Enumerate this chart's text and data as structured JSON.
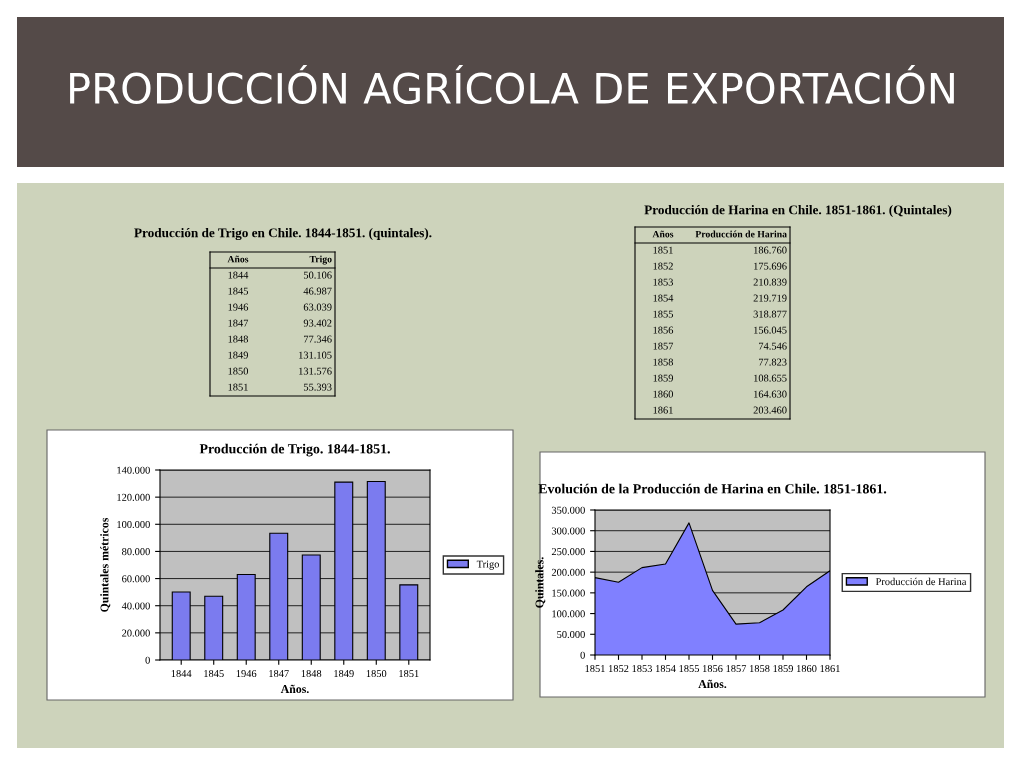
{
  "chart_data": [
    {
      "type": "bar",
      "title": "Producción de Trigo. 1844-1851.",
      "xlabel": "Años.",
      "ylabel": "Quintales métricos",
      "categories": [
        "1844",
        "1845",
        "1946",
        "1847",
        "1848",
        "1849",
        "1850",
        "1851"
      ],
      "series": [
        {
          "name": "Trigo",
          "color": "#7b7bef",
          "values": [
            50106,
            46987,
            63039,
            93402,
            77346,
            131105,
            131576,
            55393
          ]
        }
      ],
      "value_labels": [
        "50.106",
        "46.987",
        "63.039",
        "93.402",
        "77.346",
        "131.105",
        "131.576",
        "55.393"
      ],
      "ylim": [
        0,
        140000
      ],
      "yticks": [
        0,
        {
          "value": 20000,
          "label": "20.000"
        },
        {
          "value": 40000,
          "label": "40.000"
        },
        {
          "value": 60000,
          "label": "60.000"
        },
        {
          "value": 80000,
          "label": "80.000"
        },
        {
          "value": 100000,
          "label": "100.000"
        },
        {
          "value": 120000,
          "label": "120.000"
        },
        {
          "value": 140000,
          "label": "140.000"
        }
      ],
      "grid": "y",
      "legend": "right",
      "annotations": [
        "PRODUCCIÓN AGRÍCOLA DE EXPORTACIÓN",
        "Producción de Trigo en Chile. 1844-1851. (quintales).",
        "Años",
        "Trigo"
      ]
    },
    {
      "type": "area",
      "title": "Evolución de la Producción de Harina en Chile. 1851-1861.",
      "xlabel": "Años.",
      "ylabel": "Quintales.",
      "categories": [
        "1851",
        "1852",
        "1853",
        "1854",
        "1855",
        "1856",
        "1857",
        "1858",
        "1859",
        "1860",
        "1861"
      ],
      "series": [
        {
          "name": "Producción de Harina",
          "color": "#8080ff",
          "values": [
            186760,
            175696,
            210839,
            219719,
            318877,
            156045,
            74546,
            77823,
            108655,
            164630,
            203460
          ]
        }
      ],
      "value_labels": [
        "186.760",
        "175.696",
        "210.839",
        "219.719",
        "318.877",
        "156.045",
        "74.546",
        "77.823",
        "108.655",
        "164.630",
        "203.460"
      ],
      "ylim": [
        0,
        350000
      ],
      "yticks": [
        0,
        {
          "value": 50000,
          "label": "50.000"
        },
        {
          "value": 100000,
          "label": "100.000"
        },
        {
          "value": 150000,
          "label": "150.000"
        },
        {
          "value": 200000,
          "label": "200.000"
        },
        {
          "value": 250000,
          "label": "250.000"
        },
        {
          "value": 300000,
          "label": "300.000"
        },
        {
          "value": 350000,
          "label": "350.000"
        }
      ],
      "grid": "y",
      "legend": "right",
      "annotations": [
        "Producción de Harina en Chile. 1851-1861. (Quintales)",
        "Años",
        "Producción de Harina"
      ]
    }
  ]
}
